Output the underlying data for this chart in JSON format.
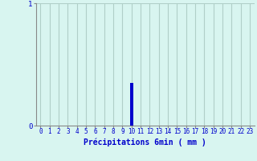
{
  "title": "",
  "xlabel": "Précipitations 6min ( mm )",
  "background_color": "#d8f5f0",
  "grid_color": "#b0cfc8",
  "bar_color": "#0000cc",
  "axis_color": "#888888",
  "text_color": "#0000cc",
  "xlim": [
    -0.5,
    23.5
  ],
  "ylim": [
    0,
    1.0
  ],
  "yticks": [
    0,
    1
  ],
  "xticks": [
    0,
    1,
    2,
    3,
    4,
    5,
    6,
    7,
    8,
    9,
    10,
    11,
    12,
    13,
    14,
    15,
    16,
    17,
    18,
    19,
    20,
    21,
    22,
    23
  ],
  "bar_x": [
    10
  ],
  "bar_height": [
    0.35
  ],
  "bar_width": 0.4,
  "xlabel_fontsize": 7,
  "tick_fontsize": 5.5,
  "ytick_fontsize": 6.5
}
